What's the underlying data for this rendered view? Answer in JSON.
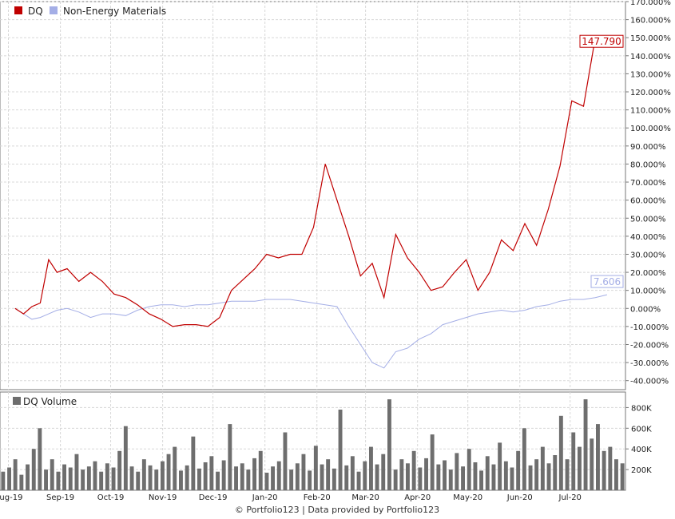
{
  "colors": {
    "primary": "#c00000",
    "benchmark": "#a4aee6",
    "volume": "#6e6e6e",
    "grid": "#d8d8d8",
    "frame": "#777777"
  },
  "price_panel": {
    "legend": [
      {
        "name": "DQ",
        "color": "#c00000"
      },
      {
        "name": "Non-Energy Materials",
        "color": "#a4aee6"
      }
    ],
    "last_value_labels": {
      "primary": "147.790",
      "benchmark": "7.606"
    }
  },
  "volume_panel": {
    "legend": [
      {
        "name": "DQ Volume",
        "color": "#6e6e6e"
      }
    ]
  },
  "footer": "© Portfolio123 | Data provided by Portfolio123",
  "chart_data": [
    {
      "type": "line",
      "ylim": [
        -45,
        170
      ],
      "y_ticks": [
        "170.000%",
        "160.000%",
        "150.000%",
        "140.000%",
        "130.000%",
        "120.000%",
        "110.000%",
        "100.000%",
        "90.000%",
        "80.000%",
        "70.000%",
        "60.000%",
        "50.000%",
        "40.000%",
        "30.000%",
        "20.000%",
        "10.000%",
        "0.000%",
        "-10.000%",
        "-20.000%",
        "-30.000%",
        "-40.000%"
      ],
      "x_ticks": [
        "Aug-19",
        "Sep-19",
        "Oct-19",
        "Nov-19",
        "Dec-19",
        "Jan-20",
        "Feb-20",
        "Mar-20",
        "Apr-20",
        "May-20",
        "Jun-20",
        "Jul-20"
      ],
      "x": [
        "2019-08-05",
        "2019-08-10",
        "2019-08-15",
        "2019-08-20",
        "2019-08-25",
        "2019-08-30",
        "2019-09-05",
        "2019-09-12",
        "2019-09-19",
        "2019-09-26",
        "2019-10-03",
        "2019-10-10",
        "2019-10-17",
        "2019-10-24",
        "2019-10-31",
        "2019-11-07",
        "2019-11-14",
        "2019-11-21",
        "2019-11-28",
        "2019-12-05",
        "2019-12-12",
        "2019-12-19",
        "2019-12-26",
        "2020-01-02",
        "2020-01-09",
        "2020-01-16",
        "2020-01-23",
        "2020-01-30",
        "2020-02-06",
        "2020-02-13",
        "2020-02-20",
        "2020-02-27",
        "2020-03-05",
        "2020-03-12",
        "2020-03-19",
        "2020-03-26",
        "2020-04-02",
        "2020-04-09",
        "2020-04-16",
        "2020-04-23",
        "2020-04-30",
        "2020-05-07",
        "2020-05-14",
        "2020-05-21",
        "2020-05-28",
        "2020-06-04",
        "2020-06-11",
        "2020-06-18",
        "2020-06-25",
        "2020-07-02",
        "2020-07-09",
        "2020-07-16",
        "2020-07-23"
      ],
      "series": [
        {
          "name": "DQ",
          "values": [
            0,
            -3,
            1,
            3,
            27,
            20,
            22,
            15,
            20,
            15,
            8,
            6,
            2,
            -3,
            -6,
            -10,
            -9,
            -9,
            -10,
            -5,
            10,
            16,
            22,
            30,
            28,
            30,
            30,
            45,
            80,
            60,
            40,
            18,
            25,
            6,
            41,
            28,
            20,
            10,
            12,
            20,
            27,
            10,
            20,
            38,
            32,
            47,
            35,
            55,
            79,
            115,
            112,
            150,
            147.79
          ]
        },
        {
          "name": "Non-Energy Materials",
          "values": [
            0,
            -3,
            -6,
            -5,
            -3,
            -1,
            0,
            -2,
            -5,
            -3,
            -3,
            -4,
            -1,
            1,
            2,
            2,
            1,
            2,
            2,
            3,
            4,
            4,
            4,
            5,
            5,
            5,
            4,
            3,
            2,
            1,
            -10,
            -20,
            -30,
            -33,
            -24,
            -22,
            -17,
            -14,
            -9,
            -7,
            -5,
            -3,
            -2,
            -1,
            -2,
            -1,
            1,
            2,
            4,
            5,
            5,
            6,
            7.606
          ]
        }
      ]
    },
    {
      "type": "bar",
      "title": "DQ Volume",
      "ylim": [
        0,
        950000
      ],
      "y_ticks": [
        "800K",
        "600K",
        "400K",
        "200K"
      ],
      "values": [
        180000,
        220000,
        300000,
        150000,
        250000,
        400000,
        600000,
        200000,
        300000,
        180000,
        250000,
        220000,
        350000,
        200000,
        230000,
        280000,
        180000,
        260000,
        220000,
        380000,
        620000,
        230000,
        180000,
        300000,
        240000,
        200000,
        280000,
        350000,
        420000,
        190000,
        240000,
        520000,
        210000,
        270000,
        330000,
        180000,
        290000,
        640000,
        230000,
        260000,
        200000,
        310000,
        380000,
        170000,
        230000,
        280000,
        560000,
        200000,
        260000,
        350000,
        190000,
        430000,
        250000,
        300000,
        210000,
        780000,
        240000,
        330000,
        180000,
        280000,
        420000,
        250000,
        350000,
        880000,
        200000,
        300000,
        260000,
        380000,
        220000,
        310000,
        540000,
        250000,
        290000,
        200000,
        360000,
        230000,
        400000,
        270000,
        190000,
        330000,
        250000,
        460000,
        280000,
        220000,
        380000,
        600000,
        240000,
        300000,
        420000,
        260000,
        340000,
        720000,
        300000,
        560000,
        420000,
        880000,
        500000,
        640000,
        380000,
        420000,
        300000,
        260000
      ]
    }
  ]
}
